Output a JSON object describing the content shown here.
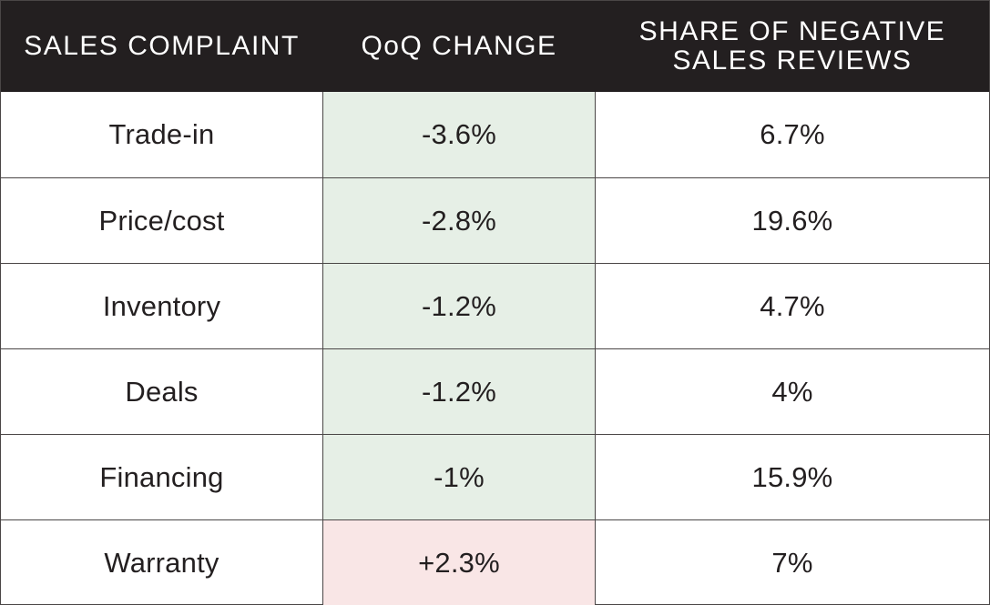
{
  "chart_data": {
    "type": "table",
    "columns": [
      "SALES COMPLAINT",
      "QoQ CHANGE",
      "SHARE OF NEGATIVE\nSALES REVIEWS"
    ],
    "rows": [
      {
        "complaint": "Trade-in",
        "qoq_change": "-3.6%",
        "share": "6.7%",
        "direction": "decrease"
      },
      {
        "complaint": "Price/cost",
        "qoq_change": "-2.8%",
        "share": "19.6%",
        "direction": "decrease"
      },
      {
        "complaint": "Inventory",
        "qoq_change": "-1.2%",
        "share": "4.7%",
        "direction": "decrease"
      },
      {
        "complaint": "Deals",
        "qoq_change": "-1.2%",
        "share": "4%",
        "direction": "decrease"
      },
      {
        "complaint": "Financing",
        "qoq_change": "-1%",
        "share": "15.9%",
        "direction": "decrease"
      },
      {
        "complaint": "Warranty",
        "qoq_change": "+2.3%",
        "share": "7%",
        "direction": "increase"
      }
    ],
    "colors": {
      "header_background": "#231f20",
      "header_text": "#ffffff",
      "decrease_fill": "#e6efe6",
      "increase_fill": "#f9e6e6",
      "border": "#4a4646"
    }
  }
}
